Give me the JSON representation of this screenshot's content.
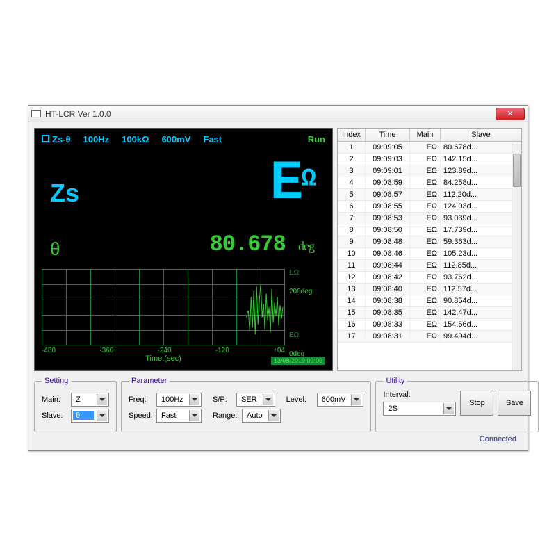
{
  "window": {
    "title": "HT-LCR Ver 1.0.0"
  },
  "display": {
    "mode": "Zs-θ",
    "freq": "100Hz",
    "range": "100kΩ",
    "level": "600mV",
    "speed": "Fast",
    "state": "Run",
    "main_label": "Zs",
    "main_value": "E",
    "main_unit": "Ω",
    "slave_label": "θ",
    "slave_value": "80.678",
    "slave_unit": "deg",
    "cyan_color": "#00ccff",
    "green_color": "#33cc33",
    "bg_color": "#000000"
  },
  "graph": {
    "x_ticks": [
      "-480",
      "-360",
      "-240",
      "-120",
      "+04"
    ],
    "x_label": "Time:(sec)",
    "y_top1": "EΩ",
    "y_top2": "200deg",
    "y_bot1": "EΩ",
    "y_bot2": "0deg",
    "timestamp": "13/08/2019  09:09",
    "grid_color": "#184830",
    "border_color": "#286840",
    "trace_color": "#33cc33",
    "trace_points": [
      [
        295,
        70
      ],
      [
        298,
        60
      ],
      [
        300,
        90
      ],
      [
        302,
        40
      ],
      [
        304,
        85
      ],
      [
        306,
        30
      ],
      [
        308,
        95
      ],
      [
        310,
        25
      ],
      [
        312,
        80
      ],
      [
        314,
        45
      ],
      [
        316,
        20
      ],
      [
        318,
        70
      ],
      [
        320,
        50
      ],
      [
        322,
        88
      ],
      [
        324,
        35
      ],
      [
        326,
        75
      ],
      [
        328,
        55
      ],
      [
        330,
        92
      ],
      [
        332,
        28
      ],
      [
        334,
        78
      ],
      [
        336,
        48
      ],
      [
        338,
        68
      ],
      [
        340,
        40
      ],
      [
        342,
        82
      ],
      [
        344,
        52
      ],
      [
        346,
        72
      ],
      [
        348,
        55
      ]
    ]
  },
  "table": {
    "cols": [
      "Index",
      "Time",
      "Main",
      "Slave"
    ],
    "rows": [
      {
        "i": "1",
        "t": "09:09:05",
        "m": "EΩ",
        "s": "80.678d..."
      },
      {
        "i": "2",
        "t": "09:09:03",
        "m": "EΩ",
        "s": "142.15d..."
      },
      {
        "i": "3",
        "t": "09:09:01",
        "m": "EΩ",
        "s": "123.89d..."
      },
      {
        "i": "4",
        "t": "09:08:59",
        "m": "EΩ",
        "s": "84.258d..."
      },
      {
        "i": "5",
        "t": "09:08:57",
        "m": "EΩ",
        "s": "112.20d..."
      },
      {
        "i": "6",
        "t": "09:08:55",
        "m": "EΩ",
        "s": "124.03d..."
      },
      {
        "i": "7",
        "t": "09:08:53",
        "m": "EΩ",
        "s": "93.039d..."
      },
      {
        "i": "8",
        "t": "09:08:50",
        "m": "EΩ",
        "s": "17.739d..."
      },
      {
        "i": "9",
        "t": "09:08:48",
        "m": "EΩ",
        "s": "59.363d..."
      },
      {
        "i": "10",
        "t": "09:08:46",
        "m": "EΩ",
        "s": "105.23d..."
      },
      {
        "i": "11",
        "t": "09:08:44",
        "m": "EΩ",
        "s": "112.85d..."
      },
      {
        "i": "12",
        "t": "09:08:42",
        "m": "EΩ",
        "s": "93.762d..."
      },
      {
        "i": "13",
        "t": "09:08:40",
        "m": "EΩ",
        "s": "112.57d..."
      },
      {
        "i": "14",
        "t": "09:08:38",
        "m": "EΩ",
        "s": "90.854d..."
      },
      {
        "i": "15",
        "t": "09:08:35",
        "m": "EΩ",
        "s": "142.47d..."
      },
      {
        "i": "16",
        "t": "09:08:33",
        "m": "EΩ",
        "s": "154.56d..."
      },
      {
        "i": "17",
        "t": "09:08:31",
        "m": "EΩ",
        "s": "99.494d..."
      }
    ]
  },
  "setting": {
    "legend": "Setting",
    "main_label": "Main:",
    "main_value": "Z",
    "slave_label": "Slave:",
    "slave_value": "θ"
  },
  "parameter": {
    "legend": "Parameter",
    "freq_label": "Freq:",
    "freq_value": "100Hz",
    "sp_label": "S/P:",
    "sp_value": "SER",
    "level_label": "Level:",
    "level_value": "600mV",
    "speed_label": "Speed:",
    "speed_value": "Fast",
    "range_label": "Range:",
    "range_value": "Auto"
  },
  "utility": {
    "legend": "Utility",
    "interval_label": "Interval:",
    "interval_value": "2S",
    "stop": "Stop",
    "save": "Save"
  },
  "status": "Connected"
}
